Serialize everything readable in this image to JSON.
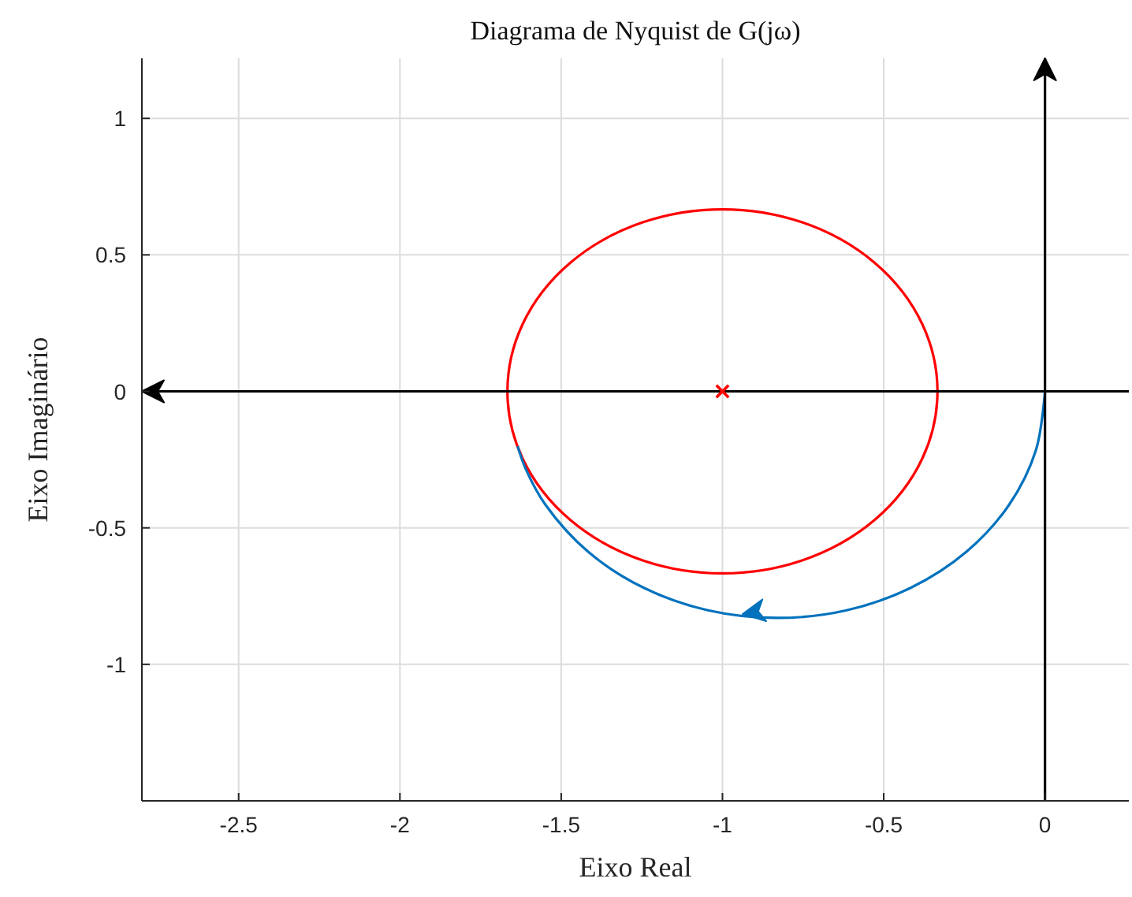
{
  "chart_data": {
    "type": "line",
    "title": "Diagrama de Nyquist de G(jω)",
    "xlabel": "Eixo Real",
    "ylabel": "Eixo Imaginário",
    "xlim": [
      -2.8,
      0.26
    ],
    "ylim": [
      -1.5,
      1.22
    ],
    "xticks": [
      -2.5,
      -2,
      -1.5,
      -1,
      -0.5,
      0
    ],
    "yticks": [
      -1,
      -0.5,
      0,
      0.5,
      1
    ],
    "grid": true,
    "marker": "none",
    "line_style": "solid",
    "series": [
      {
        "color": "#0072bd",
        "x": [
          0,
          -0.028,
          -0.111,
          -0.243,
          -0.415,
          -0.615,
          -0.83,
          -1.045,
          -1.245,
          -1.417,
          -1.549,
          -1.61,
          -1.635
        ],
        "values": [
          0,
          -0.215,
          -0.415,
          -0.587,
          -0.719,
          -0.802,
          -0.83,
          -0.802,
          -0.719,
          -0.587,
          -0.415,
          -0.284,
          -0.201
        ]
      },
      {
        "color": "#000000",
        "x": [
          0.26,
          -2.8
        ],
        "values": [
          0,
          0
        ]
      },
      {
        "color": "#000000",
        "x": [
          0,
          0
        ],
        "values": [
          -1.5,
          1.22
        ]
      },
      {
        "type": "scatter",
        "marker": "cross",
        "color": "#ff0000",
        "x": [
          -1
        ],
        "values": [
          0
        ]
      }
    ]
  }
}
